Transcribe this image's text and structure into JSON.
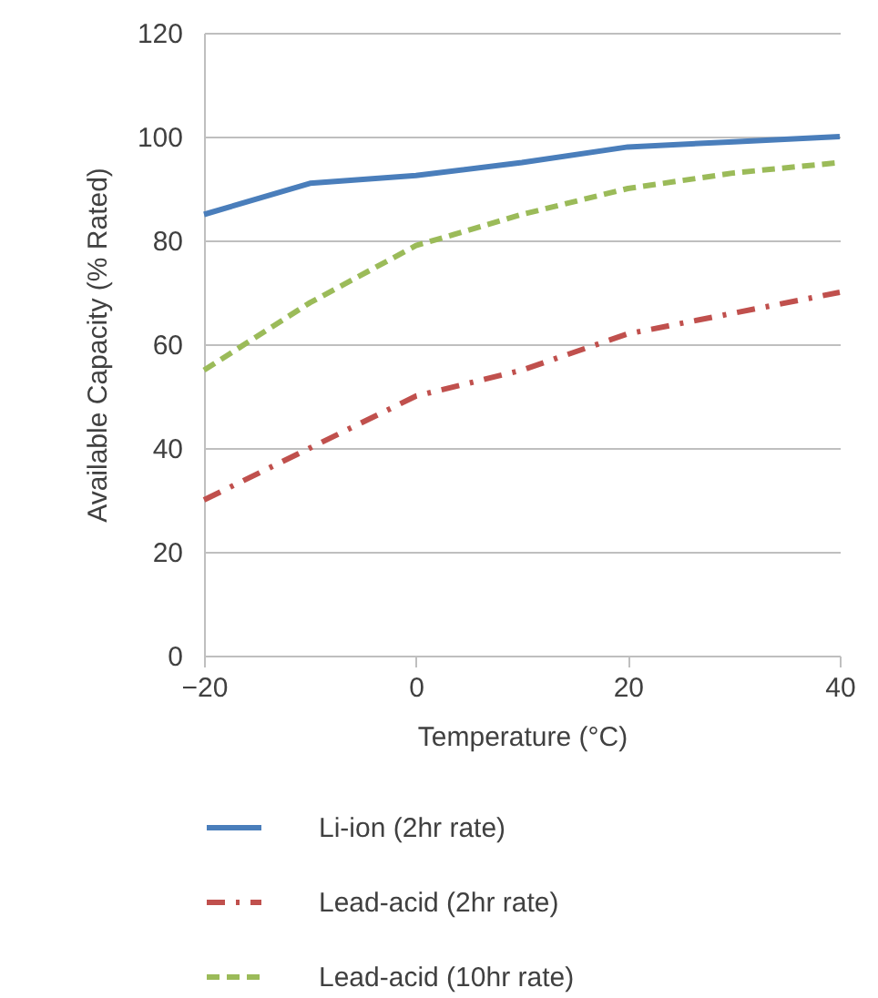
{
  "chart_data": {
    "type": "line",
    "xlabel": "Temperature (°C)",
    "ylabel": "Available Capacity (% Rated)",
    "x": [
      -20,
      -10,
      0,
      10,
      20,
      30,
      40
    ],
    "series": [
      {
        "name": "Li-ion (2hr rate)",
        "color": "#4a7ebb",
        "line_style": "solid",
        "values": [
          85,
          91,
          92.5,
          95,
          98,
          99,
          100
        ]
      },
      {
        "name": "Lead-acid (2hr rate)",
        "color": "#c0504d",
        "line_style": "dashdot",
        "values": [
          30,
          40,
          50,
          55,
          62,
          66,
          70
        ]
      },
      {
        "name": "Lead-acid (10hr rate)",
        "color": "#9bbb59",
        "line_style": "dashed",
        "values": [
          55,
          68,
          79,
          85,
          90,
          93,
          95
        ]
      }
    ],
    "xlim": [
      -20,
      40
    ],
    "xticks": [
      -20,
      0,
      20,
      40
    ],
    "ylim": [
      0,
      120
    ],
    "yticks": [
      0,
      20,
      40,
      60,
      80,
      100,
      120
    ],
    "grid": "y",
    "legend": "bottom",
    "marker": "none"
  }
}
